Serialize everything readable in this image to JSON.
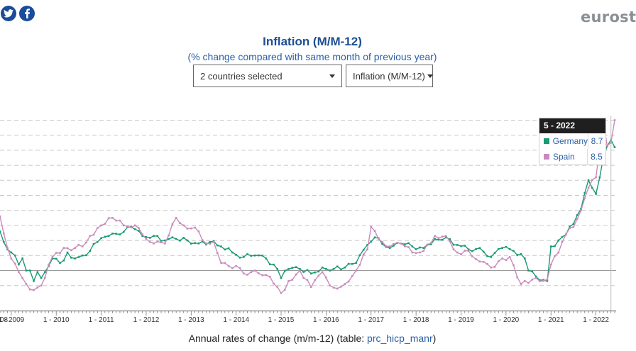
{
  "brand": "eurost",
  "header": {
    "title": "Inflation (M/M-12)",
    "subtitle": "(% change compared with same month of previous year)"
  },
  "controls": {
    "countries_value": "2 countries selected",
    "indicator_value": "Inflation (M/M-12)"
  },
  "icons": {
    "twitter": "twitter-icon",
    "facebook": "facebook-icon"
  },
  "tooltip": {
    "period": "5 - 2022",
    "rows": [
      {
        "name": "Germany",
        "value": "8.7"
      },
      {
        "name": "Spain",
        "value": "8.5"
      }
    ]
  },
  "footer": {
    "prefix": "Annual rates of change (m/m-12) (table: ",
    "link": "prc_hicp_manr",
    "suffix": ")"
  },
  "colors": {
    "germany": "#1a9a73",
    "spain": "#c98bbd",
    "accent": "#1d4f91",
    "grid": "#c8c8c8"
  },
  "chart_data": {
    "type": "line",
    "title": "Inflation (M/M-12)",
    "subtitle": "(% change compared with same month of previous year)",
    "x_tick_labels": [
      "08",
      "1 - 2009",
      "1 - 2010",
      "1 - 2011",
      "1 - 2012",
      "1 - 2013",
      "1 - 2014",
      "1 - 2015",
      "1 - 2016",
      "1 - 2017",
      "1 - 2018",
      "1 - 2019",
      "1 - 2020",
      "1 - 2021",
      "1 - 2022"
    ],
    "x_range": [
      "2008-10",
      "2022-06"
    ],
    "ylim": [
      -2,
      10.5
    ],
    "grid": "horizontal dashed",
    "series": [
      {
        "name": "Germany",
        "color": "#1a9a73",
        "anchors": [
          [
            "2008-10",
            2.6
          ],
          [
            "2008-11",
            1.9
          ],
          [
            "2008-12",
            1.4
          ],
          [
            "2009-01",
            1.2
          ],
          [
            "2009-02",
            1.0
          ],
          [
            "2009-03",
            0.4
          ],
          [
            "2009-04",
            0.8
          ],
          [
            "2009-05",
            0.0
          ],
          [
            "2009-06",
            0.0
          ],
          [
            "2009-07",
            -0.7
          ],
          [
            "2009-08",
            -0.1
          ],
          [
            "2009-09",
            -0.5
          ],
          [
            "2009-10",
            -0.1
          ],
          [
            "2009-11",
            0.3
          ],
          [
            "2009-12",
            0.8
          ],
          [
            "2010-02",
            0.5
          ],
          [
            "2010-04",
            1.2
          ],
          [
            "2010-06",
            0.8
          ],
          [
            "2010-08",
            1.0
          ],
          [
            "2010-10",
            1.3
          ],
          [
            "2010-12",
            1.9
          ],
          [
            "2011-03",
            2.3
          ],
          [
            "2011-06",
            2.4
          ],
          [
            "2011-09",
            2.9
          ],
          [
            "2011-12",
            2.3
          ],
          [
            "2012-03",
            2.3
          ],
          [
            "2012-06",
            2.0
          ],
          [
            "2012-09",
            2.1
          ],
          [
            "2012-12",
            2.0
          ],
          [
            "2013-03",
            1.8
          ],
          [
            "2013-06",
            1.9
          ],
          [
            "2013-09",
            1.6
          ],
          [
            "2013-12",
            1.2
          ],
          [
            "2014-03",
            0.9
          ],
          [
            "2014-06",
            1.0
          ],
          [
            "2014-09",
            0.8
          ],
          [
            "2014-12",
            0.1
          ],
          [
            "2015-01",
            -0.5
          ],
          [
            "2015-03",
            0.1
          ],
          [
            "2015-06",
            0.1
          ],
          [
            "2015-09",
            -0.2
          ],
          [
            "2015-12",
            0.2
          ],
          [
            "2016-03",
            0.1
          ],
          [
            "2016-06",
            0.2
          ],
          [
            "2016-09",
            0.5
          ],
          [
            "2016-12",
            1.7
          ],
          [
            "2017-02",
            2.2
          ],
          [
            "2017-06",
            1.5
          ],
          [
            "2017-09",
            1.8
          ],
          [
            "2017-12",
            1.6
          ],
          [
            "2018-03",
            1.5
          ],
          [
            "2018-06",
            2.1
          ],
          [
            "2018-09",
            2.2
          ],
          [
            "2018-12",
            1.7
          ],
          [
            "2019-03",
            1.4
          ],
          [
            "2019-06",
            1.5
          ],
          [
            "2019-09",
            0.9
          ],
          [
            "2019-12",
            1.5
          ],
          [
            "2020-03",
            1.3
          ],
          [
            "2020-06",
            0.8
          ],
          [
            "2020-07",
            0.0
          ],
          [
            "2020-09",
            -0.4
          ],
          [
            "2020-12",
            -0.7
          ],
          [
            "2021-01",
            1.6
          ],
          [
            "2021-03",
            2.0
          ],
          [
            "2021-05",
            2.4
          ],
          [
            "2021-07",
            3.1
          ],
          [
            "2021-09",
            4.1
          ],
          [
            "2021-11",
            6.0
          ],
          [
            "2022-01",
            5.1
          ],
          [
            "2022-03",
            7.6
          ],
          [
            "2022-05",
            8.7
          ],
          [
            "2022-06",
            8.2
          ]
        ]
      },
      {
        "name": "Spain",
        "color": "#c98bbd",
        "anchors": [
          [
            "2008-10",
            3.6
          ],
          [
            "2008-12",
            1.5
          ],
          [
            "2009-01",
            0.8
          ],
          [
            "2009-03",
            -0.1
          ],
          [
            "2009-05",
            -0.9
          ],
          [
            "2009-07",
            -1.3
          ],
          [
            "2009-09",
            -1.0
          ],
          [
            "2009-11",
            0.4
          ],
          [
            "2009-12",
            0.9
          ],
          [
            "2010-03",
            1.5
          ],
          [
            "2010-06",
            1.5
          ],
          [
            "2010-08",
            1.6
          ],
          [
            "2010-10",
            2.3
          ],
          [
            "2011-01",
            3.0
          ],
          [
            "2011-04",
            3.5
          ],
          [
            "2011-07",
            3.0
          ],
          [
            "2011-10",
            3.0
          ],
          [
            "2011-12",
            2.4
          ],
          [
            "2012-03",
            1.8
          ],
          [
            "2012-06",
            1.8
          ],
          [
            "2012-09",
            3.5
          ],
          [
            "2012-11",
            3.0
          ],
          [
            "2013-01",
            2.8
          ],
          [
            "2013-03",
            2.6
          ],
          [
            "2013-05",
            1.8
          ],
          [
            "2013-07",
            1.9
          ],
          [
            "2013-09",
            0.5
          ],
          [
            "2013-11",
            0.3
          ],
          [
            "2014-01",
            0.3
          ],
          [
            "2014-03",
            -0.2
          ],
          [
            "2014-06",
            0.0
          ],
          [
            "2014-09",
            -0.3
          ],
          [
            "2014-12",
            -1.1
          ],
          [
            "2015-01",
            -1.5
          ],
          [
            "2015-03",
            -0.7
          ],
          [
            "2015-06",
            0.0
          ],
          [
            "2015-09",
            -1.1
          ],
          [
            "2015-12",
            -0.1
          ],
          [
            "2016-02",
            -1.0
          ],
          [
            "2016-04",
            -1.2
          ],
          [
            "2016-06",
            -0.9
          ],
          [
            "2016-09",
            0.0
          ],
          [
            "2016-12",
            1.4
          ],
          [
            "2017-01",
            2.9
          ],
          [
            "2017-03",
            2.1
          ],
          [
            "2017-06",
            1.6
          ],
          [
            "2017-09",
            1.8
          ],
          [
            "2017-12",
            1.2
          ],
          [
            "2018-02",
            1.2
          ],
          [
            "2018-03",
            1.3
          ],
          [
            "2018-06",
            2.3
          ],
          [
            "2018-09",
            2.3
          ],
          [
            "2018-12",
            1.2
          ],
          [
            "2019-03",
            1.3
          ],
          [
            "2019-06",
            0.6
          ],
          [
            "2019-09",
            0.2
          ],
          [
            "2019-12",
            0.8
          ],
          [
            "2020-02",
            0.9
          ],
          [
            "2020-05",
            -0.9
          ],
          [
            "2020-08",
            -0.6
          ],
          [
            "2020-12",
            -0.6
          ],
          [
            "2021-01",
            0.4
          ],
          [
            "2021-03",
            1.2
          ],
          [
            "2021-05",
            2.4
          ],
          [
            "2021-07",
            2.9
          ],
          [
            "2021-09",
            4.0
          ],
          [
            "2021-11",
            5.5
          ],
          [
            "2022-01",
            6.2
          ],
          [
            "2022-03",
            9.8
          ],
          [
            "2022-04",
            8.3
          ],
          [
            "2022-05",
            8.5
          ],
          [
            "2022-06",
            10.0
          ]
        ]
      }
    ]
  }
}
